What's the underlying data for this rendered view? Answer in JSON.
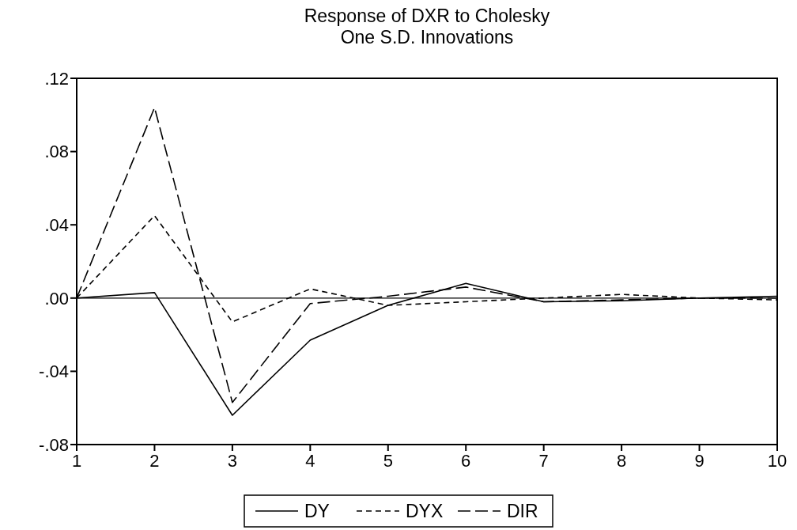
{
  "chart_data": {
    "type": "line",
    "title": "Response of DXR to Cholesky\nOne S.D. Innovations",
    "x": [
      1,
      2,
      3,
      4,
      5,
      6,
      7,
      8,
      9,
      10
    ],
    "series": [
      {
        "name": "DY",
        "color": "#000000",
        "line_style": "solid",
        "values": [
          0,
          0.003,
          -0.064,
          -0.023,
          -0.004,
          0.008,
          -0.002,
          -0.0015,
          0,
          0.001
        ]
      },
      {
        "name": "DYX",
        "color": "#000000",
        "line_style": "dashed",
        "values": [
          0,
          0.045,
          -0.013,
          0.005,
          -0.004,
          -0.002,
          0,
          0.002,
          0,
          -0.001
        ]
      },
      {
        "name": "DIR",
        "color": "#000000",
        "line_style": "longdash",
        "values": [
          0,
          0.104,
          -0.057,
          -0.003,
          0.001,
          0.006,
          -0.002,
          -0.001,
          0,
          0
        ]
      }
    ],
    "xlim": [
      1,
      10
    ],
    "xticks": [
      1,
      2,
      3,
      4,
      5,
      6,
      7,
      8,
      9,
      10
    ],
    "ylim": [
      -0.08,
      0.12
    ],
    "yticks": [
      {
        "value": -0.08,
        "label": "-.08"
      },
      {
        "value": -0.04,
        "label": "-.04"
      },
      {
        "value": 0,
        "label": ".00"
      },
      {
        "value": 0.04,
        "label": ".04"
      },
      {
        "value": 0.08,
        "label": ".08"
      },
      {
        "value": 0.12,
        "label": ".12"
      }
    ],
    "ref_lines": [
      {
        "axis": "y",
        "value": 0,
        "color": "#000000",
        "line_style": "solid"
      }
    ],
    "legend": "bottom",
    "grid": false,
    "marker": "none"
  }
}
